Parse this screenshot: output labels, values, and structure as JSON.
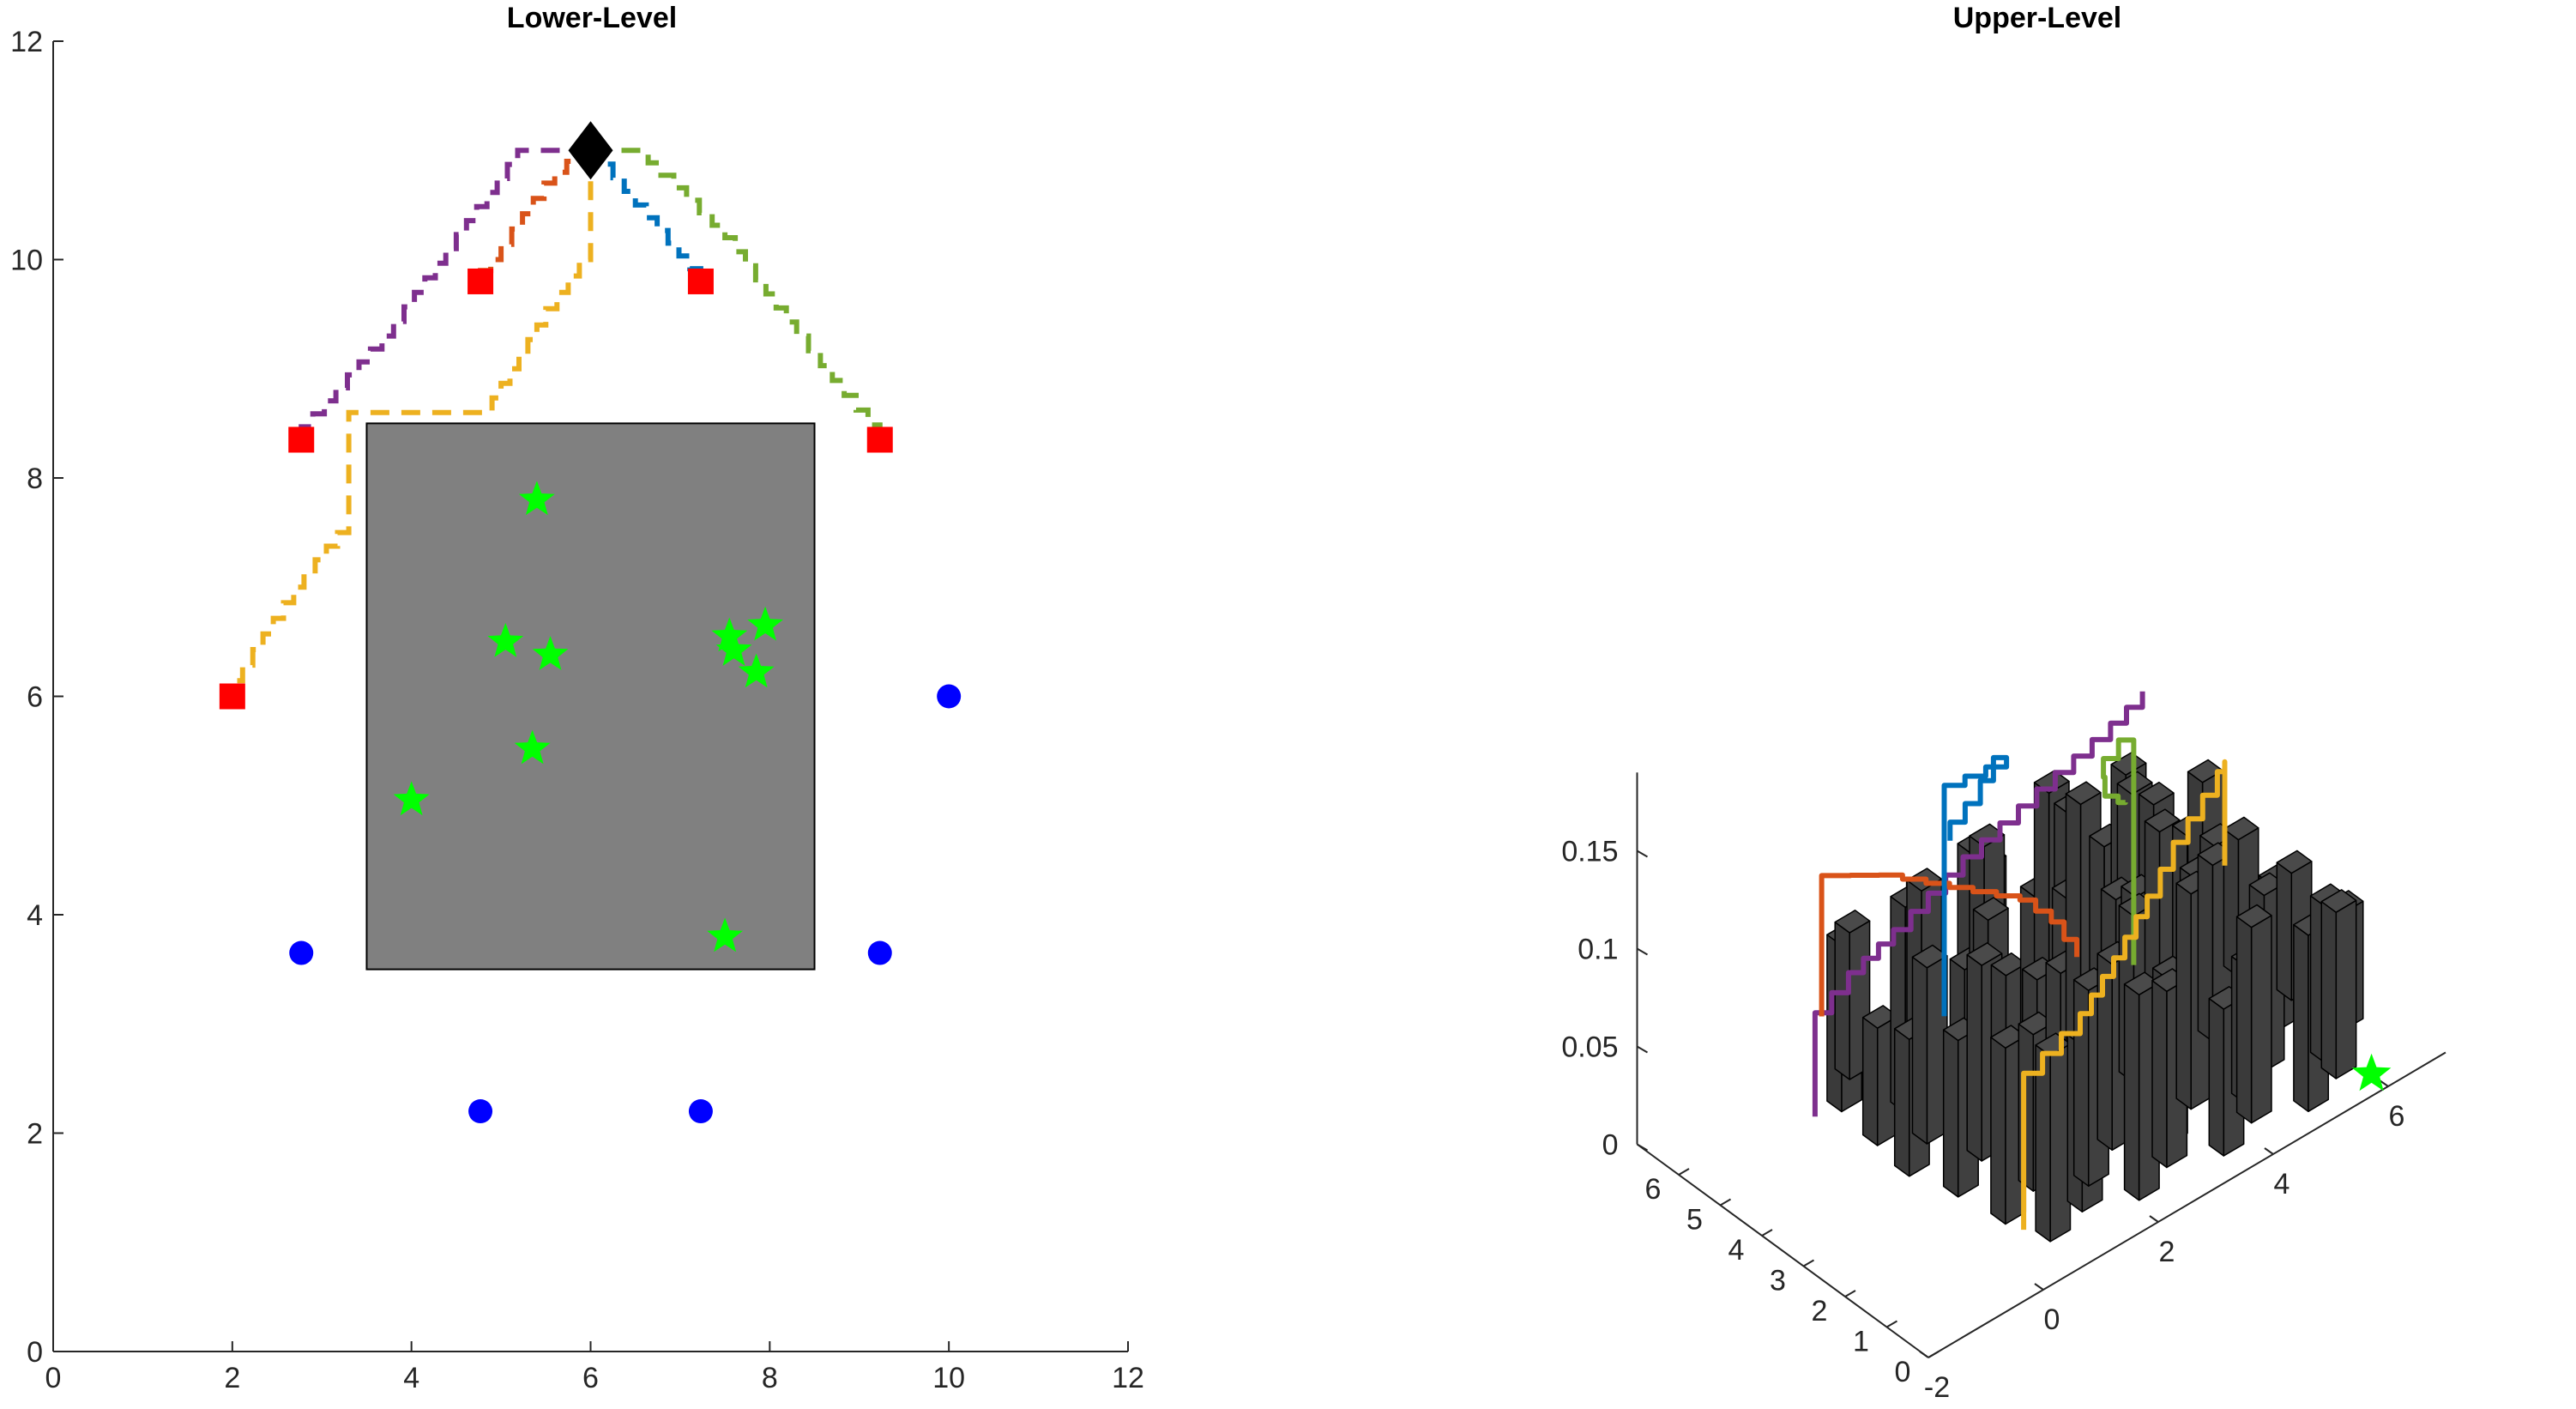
{
  "chart_data": [
    {
      "type": "scatter",
      "title": "Lower-Level",
      "xlim": [
        0,
        12
      ],
      "ylim": [
        0,
        12
      ],
      "xticks": [
        0,
        2,
        4,
        6,
        8,
        10,
        12
      ],
      "yticks": [
        0,
        2,
        4,
        6,
        8,
        10,
        12
      ],
      "grid": false,
      "obstacle": {
        "x": [
          3.5,
          8.5
        ],
        "y": [
          3.5,
          8.5
        ],
        "color": "#808080"
      },
      "base_station": {
        "x": 6,
        "y": 11,
        "color": "#000000"
      },
      "red_squares": {
        "color": "#ff0000",
        "points": [
          [
            2.0,
            6.0
          ],
          [
            2.77,
            8.35
          ],
          [
            4.77,
            9.8
          ],
          [
            7.23,
            9.8
          ],
          [
            9.23,
            8.35
          ]
        ]
      },
      "blue_circles": {
        "color": "#0000ff",
        "points": [
          [
            2.77,
            3.65
          ],
          [
            4.77,
            2.2
          ],
          [
            7.23,
            2.2
          ],
          [
            9.23,
            3.65
          ],
          [
            10.0,
            6.0
          ]
        ]
      },
      "green_stars": {
        "color": "#00ff00",
        "points": [
          [
            5.4,
            7.8
          ],
          [
            5.05,
            6.5
          ],
          [
            5.55,
            6.38
          ],
          [
            5.35,
            5.52
          ],
          [
            4.0,
            5.05
          ],
          [
            7.55,
            6.55
          ],
          [
            7.6,
            6.42
          ],
          [
            7.95,
            6.65
          ],
          [
            7.85,
            6.22
          ],
          [
            7.5,
            3.8
          ]
        ]
      },
      "paths": [
        {
          "color": "#7e2f8e",
          "points": [
            [
              6.0,
              11.0
            ],
            [
              5.3,
              11.0
            ],
            [
              4.5,
              10.1
            ],
            [
              3.8,
              9.3
            ],
            [
              2.77,
              8.35
            ]
          ]
        },
        {
          "color": "#d95319",
          "points": [
            [
              6.0,
              11.0
            ],
            [
              5.6,
              10.7
            ],
            [
              5.0,
              10.0
            ],
            [
              4.77,
              9.8
            ]
          ]
        },
        {
          "color": "#0072bd",
          "points": [
            [
              6.0,
              11.0
            ],
            [
              6.5,
              10.5
            ],
            [
              7.23,
              9.8
            ]
          ]
        },
        {
          "color": "#77ac30",
          "points": [
            [
              6.0,
              11.0
            ],
            [
              6.5,
              11.0
            ],
            [
              7.5,
              10.2
            ],
            [
              8.3,
              9.3
            ],
            [
              9.23,
              8.35
            ]
          ]
        },
        {
          "color": "#edb120",
          "points": [
            [
              6.0,
              11.0
            ],
            [
              6.0,
              10.0
            ],
            [
              5.5,
              9.4
            ],
            [
              4.9,
              8.6
            ],
            [
              3.3,
              8.6
            ],
            [
              3.3,
              7.5
            ],
            [
              2.8,
              7.0
            ],
            [
              2.0,
              6.0
            ]
          ]
        }
      ]
    },
    {
      "type": "bar3d",
      "title": "Upper-Level",
      "xlim": [
        -2,
        7
      ],
      "ylim": [
        0,
        7
      ],
      "zlim": [
        0,
        0.19
      ],
      "xticks": [
        -2,
        0,
        2,
        4,
        6
      ],
      "yticks": [
        0,
        1,
        2,
        3,
        4,
        5,
        6
      ],
      "zticks": [
        0,
        0.05,
        0.1,
        0.15
      ],
      "ztick_labels": [
        "0",
        "0.05",
        "0.1",
        "0.15"
      ],
      "grid": false,
      "bar_color": "#404040",
      "bars": [
        [
          0.4,
          5.4,
          0.085
        ],
        [
          0.9,
          5.9,
          0.075
        ],
        [
          1.5,
          5.0,
          0.1
        ],
        [
          2.0,
          5.7,
          0.08
        ],
        [
          2.6,
          5.3,
          0.095
        ],
        [
          3.2,
          5.8,
          0.07
        ],
        [
          3.8,
          5.0,
          0.088
        ],
        [
          4.5,
          5.6,
          0.078
        ],
        [
          5.2,
          5.2,
          0.092
        ],
        [
          5.9,
          5.5,
          0.06
        ],
        [
          0.3,
          4.4,
          0.06
        ],
        [
          1.0,
          4.7,
          0.105
        ],
        [
          1.6,
          4.1,
          0.072
        ],
        [
          2.3,
          4.6,
          0.115
        ],
        [
          2.9,
          4.2,
          0.085
        ],
        [
          3.5,
          4.7,
          0.12
        ],
        [
          4.1,
          4.2,
          0.09
        ],
        [
          4.8,
          4.5,
          0.1
        ],
        [
          5.4,
          4.0,
          0.076
        ],
        [
          6.1,
          4.6,
          0.082
        ],
        [
          0.2,
          3.5,
          0.07
        ],
        [
          0.8,
          3.9,
          0.09
        ],
        [
          1.5,
          3.4,
          0.11
        ],
        [
          2.1,
          3.8,
          0.065
        ],
        [
          2.8,
          3.3,
          0.1
        ],
        [
          3.4,
          3.8,
          0.13
        ],
        [
          4.0,
          3.3,
          0.08
        ],
        [
          4.7,
          3.7,
          0.095
        ],
        [
          5.3,
          3.2,
          0.085
        ],
        [
          6.0,
          3.6,
          0.07
        ],
        [
          0.4,
          2.6,
          0.08
        ],
        [
          1.1,
          3.0,
          0.1
        ],
        [
          1.7,
          2.5,
          0.09
        ],
        [
          2.4,
          2.9,
          0.075
        ],
        [
          3.0,
          2.4,
          0.11
        ],
        [
          3.6,
          2.8,
          0.085
        ],
        [
          4.3,
          2.3,
          0.1
        ],
        [
          4.9,
          2.7,
          0.09
        ],
        [
          5.6,
          2.2,
          0.075
        ],
        [
          6.2,
          2.6,
          0.065
        ],
        [
          0.5,
          1.6,
          0.09
        ],
        [
          1.2,
          1.9,
          0.08
        ],
        [
          1.8,
          1.4,
          0.1
        ],
        [
          2.5,
          1.8,
          0.095
        ],
        [
          3.1,
          1.3,
          0.085
        ],
        [
          3.8,
          1.7,
          0.11
        ],
        [
          4.4,
          1.2,
          0.07
        ],
        [
          5.0,
          1.6,
          0.09
        ],
        [
          5.7,
          1.1,
          0.08
        ],
        [
          6.3,
          1.5,
          0.06
        ],
        [
          0.7,
          0.8,
          0.095
        ],
        [
          1.4,
          1.0,
          0.085
        ],
        [
          2.1,
          0.6,
          0.105
        ],
        [
          2.8,
          0.9,
          0.09
        ],
        [
          3.5,
          0.5,
          0.075
        ],
        [
          4.2,
          0.8,
          0.1
        ],
        [
          4.9,
          0.4,
          0.09
        ],
        [
          5.6,
          0.7,
          0.085
        ]
      ],
      "green_stars": {
        "color": "#00ff00",
        "points": [
          [
            6.0,
            0.4,
            0
          ]
        ]
      },
      "paths": [
        {
          "color": "#7e2f8e",
          "points": [
            [
              -1.8,
              3.0,
              0.073
            ],
            [
              -1.8,
              3.0,
              0.126
            ],
            [
              -1.0,
              3.3,
              0.128
            ],
            [
              0.0,
              3.6,
              0.128
            ],
            [
              1.5,
              4.0,
              0.133
            ],
            [
              3.0,
              4.3,
              0.137
            ],
            [
              4.5,
              4.6,
              0.14
            ],
            [
              5.2,
              4.8,
              0.141
            ]
          ]
        },
        {
          "color": "#d95319",
          "points": [
            [
              -0.6,
              4.5,
              0.08
            ],
            [
              -0.6,
              4.5,
              0.152
            ],
            [
              0.4,
              4.5,
              0.135
            ],
            [
              1.0,
              4.2,
              0.125
            ],
            [
              1.6,
              3.9,
              0.115
            ],
            [
              2.2,
              3.6,
              0.105
            ],
            [
              2.6,
              3.4,
              0.09
            ],
            [
              2.9,
              3.2,
              0.07
            ]
          ]
        },
        {
          "color": "#0072bd",
          "points": [
            [
              1.1,
              3.9,
              0.06
            ],
            [
              1.1,
              3.9,
              0.178
            ],
            [
              2.4,
              4.2,
              0.165
            ],
            [
              1.8,
              4.0,
              0.155
            ],
            [
              1.2,
              3.9,
              0.148
            ]
          ]
        },
        {
          "color": "#77ac30",
          "points": [
            [
              3.6,
              2.8,
              0.06
            ],
            [
              3.6,
              2.8,
              0.175
            ],
            [
              3.0,
              2.7,
              0.168
            ],
            [
              3.1,
              2.8,
              0.155
            ],
            [
              3.4,
              2.9,
              0.145
            ],
            [
              3.6,
              3.0,
              0.14
            ]
          ]
        },
        {
          "color": "#edb120",
          "points": [
            [
              0.6,
              1.3,
              0.0
            ],
            [
              0.6,
              1.3,
              0.08
            ],
            [
              1.8,
              1.6,
              0.085
            ],
            [
              2.6,
              1.9,
              0.095
            ],
            [
              3.4,
              2.2,
              0.108
            ],
            [
              4.0,
              2.4,
              0.122
            ],
            [
              5.2,
              3.0,
              0.128
            ],
            [
              5.4,
              3.1,
              0.128
            ],
            [
              5.4,
              3.1,
              0.075
            ]
          ]
        }
      ]
    }
  ]
}
